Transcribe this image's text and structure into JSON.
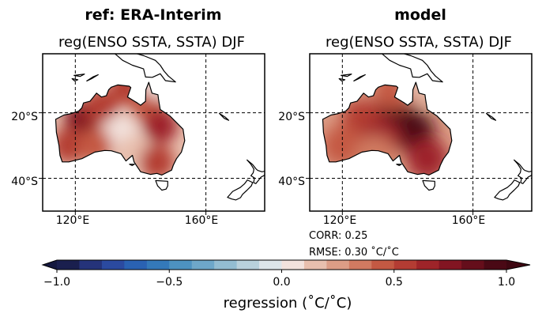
{
  "panels": [
    {
      "title": "ref: ERA-Interim",
      "subtitle": "reg(ENSO SSTA, SSTA) DJF",
      "lat_ticks": [
        "20°S",
        "40°S"
      ],
      "lon_ticks": [
        "120°E",
        "160°E"
      ],
      "stats": null
    },
    {
      "title": "model",
      "subtitle": "reg(ENSO SSTA, SSTA) DJF",
      "lat_ticks": [
        "20°S",
        "40°S"
      ],
      "lon_ticks": [
        "120°E",
        "160°E"
      ],
      "stats": {
        "corr": "CORR: 0.25",
        "rmse": "RMSE: 0.30 ˚C/˚C"
      }
    }
  ],
  "colorbar": {
    "ticks": [
      "−1.0",
      "−0.5",
      "0.0",
      "0.5",
      "1.0"
    ],
    "label": "regression (˚C/˚C)",
    "range": [
      -1.0,
      1.0
    ],
    "colors": [
      "#1a1f4e",
      "#25337a",
      "#2b4aa0",
      "#2a62b3",
      "#3479ba",
      "#4d92c1",
      "#6ea7c9",
      "#93bdd2",
      "#b9d1dc",
      "#dde5ea",
      "#f2e2dd",
      "#e8bfae",
      "#dc9d86",
      "#d07a61",
      "#c45943",
      "#b43c33",
      "#9e2429",
      "#821522",
      "#650e1b",
      "#4a0915"
    ],
    "extend": "both"
  },
  "chart_data": {
    "type": "heatmap",
    "variable": "regression of SSTA onto ENSO SSTA, DJF",
    "units": "˚C/˚C",
    "region": {
      "lon": [
        110,
        178
      ],
      "lat": [
        -50,
        -2
      ]
    },
    "panels": [
      {
        "name": "ref: ERA-Interim",
        "features": [
          {
            "lon": 122,
            "lat": -22,
            "value": 0.75
          },
          {
            "lon": 128,
            "lat": -18,
            "value": 0.55
          },
          {
            "lon": 142,
            "lat": -18,
            "value": 0.45
          },
          {
            "lon": 146,
            "lat": -24,
            "value": 0.65
          },
          {
            "lon": 134,
            "lat": -26,
            "value": 0.0
          },
          {
            "lon": 138,
            "lat": -32,
            "value": 0.1
          },
          {
            "lon": 118,
            "lat": -30,
            "value": 0.55
          },
          {
            "lon": 126,
            "lat": -30,
            "value": 0.45
          },
          {
            "lon": 145,
            "lat": -35,
            "value": 0.5
          },
          {
            "lon": 136,
            "lat": -12,
            "value": 0.55
          },
          {
            "lon": 145,
            "lat": -10,
            "value": 0.05
          }
        ]
      },
      {
        "name": "model",
        "features": [
          {
            "lon": 136,
            "lat": -20,
            "value": 0.95
          },
          {
            "lon": 142,
            "lat": -26,
            "value": 0.95
          },
          {
            "lon": 126,
            "lat": -22,
            "value": 0.5
          },
          {
            "lon": 132,
            "lat": -28,
            "value": 0.6
          },
          {
            "lon": 120,
            "lat": -30,
            "value": 0.4
          },
          {
            "lon": 130,
            "lat": -33,
            "value": 0.35
          },
          {
            "lon": 146,
            "lat": -34,
            "value": 0.6
          },
          {
            "lon": 136,
            "lat": -13,
            "value": 0.45
          },
          {
            "lon": 145,
            "lat": -10,
            "value": 0.1
          }
        ]
      }
    ]
  }
}
